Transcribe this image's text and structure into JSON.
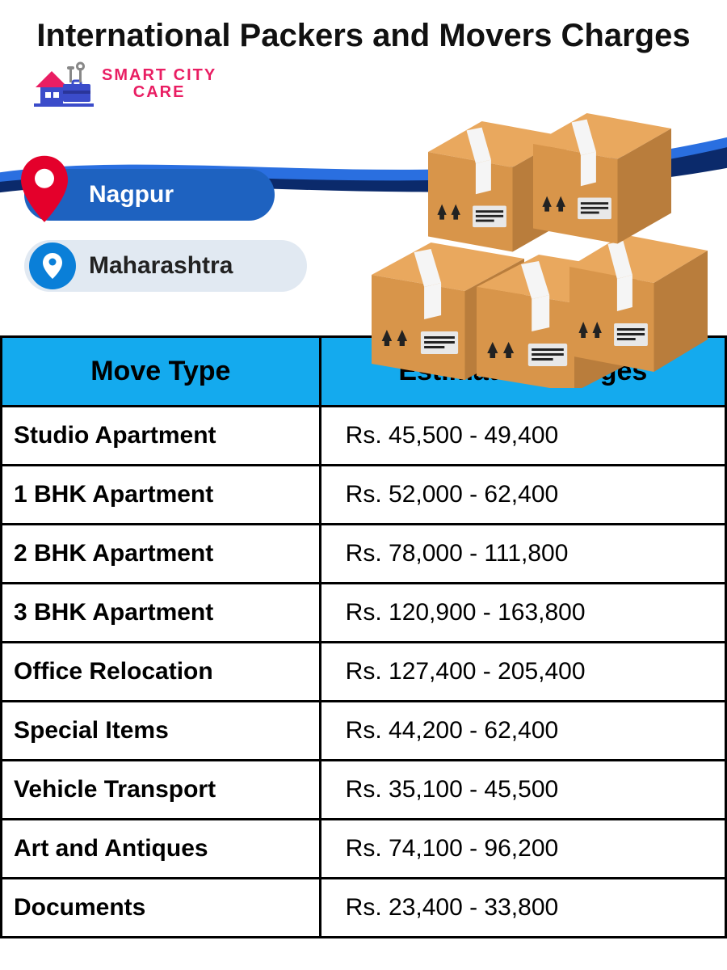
{
  "title": "International Packers and Movers Charges",
  "brand": {
    "line1": "SMART CITY",
    "line2": "CARE",
    "text_color": "#e91e63"
  },
  "location": {
    "city": "Nagpur",
    "state": "Maharashtra"
  },
  "swoosh_colors": {
    "dark": "#0b2a6b",
    "light": "#2a6fe0"
  },
  "boxes": {
    "face_color": "#d8954a",
    "top_color": "#e9a85e",
    "side_color": "#b97d3c",
    "tape_color": "#f5f5f5",
    "label_color": "#e8e8e8",
    "arrow_color": "#222222"
  },
  "pill_colors": {
    "city_bg": "#1e62c0",
    "city_text": "#ffffff",
    "state_bg": "#e1e9f2",
    "state_text": "#222222",
    "pin_red": "#e4002b",
    "pin_blue": "#0a7fd8"
  },
  "table": {
    "header_bg": "#14aaee",
    "border_color": "#000000",
    "header_fontsize": 34,
    "cell_fontsize": 30,
    "columns": [
      "Move Type",
      "Estimated Charges"
    ],
    "rows": [
      [
        "Studio Apartment",
        "Rs. 45,500 - 49,400"
      ],
      [
        "1 BHK Apartment",
        "Rs. 52,000 - 62,400"
      ],
      [
        "2 BHK Apartment",
        "Rs. 78,000 - 111,800"
      ],
      [
        "3 BHK Apartment",
        "Rs. 120,900 - 163,800"
      ],
      [
        "Office Relocation",
        "Rs. 127,400 - 205,400"
      ],
      [
        "Special Items",
        "Rs. 44,200 - 62,400"
      ],
      [
        "Vehicle Transport",
        "Rs. 35,100 - 45,500"
      ],
      [
        "Art and Antiques",
        "Rs. 74,100 - 96,200"
      ],
      [
        "Documents",
        "Rs. 23,400 - 33,800"
      ]
    ]
  }
}
